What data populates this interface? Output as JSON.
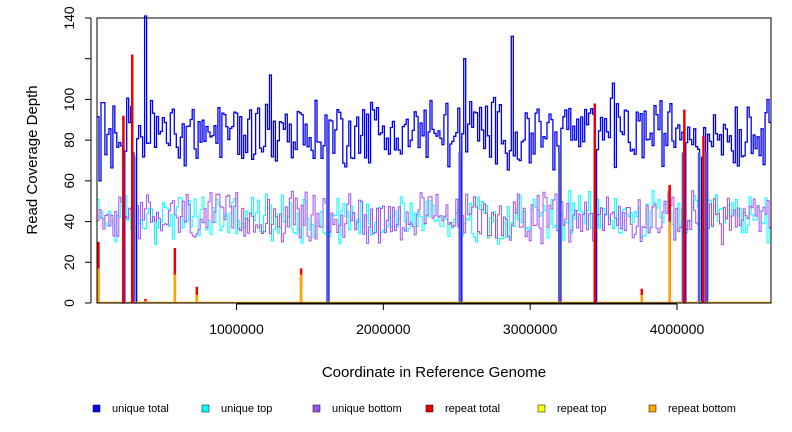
{
  "chart_data": {
    "type": "line",
    "title": "",
    "xlabel": "Coordinate in Reference Genome",
    "ylabel": "Read Coverage Depth",
    "xlim": [
      50000,
      4640000
    ],
    "ylim": [
      0,
      140
    ],
    "x_ticks": [
      1000000,
      2000000,
      3000000,
      4000000
    ],
    "x_tick_labels": [
      "1000000",
      "2000000",
      "3000000",
      "4000000"
    ],
    "y_ticks": [
      0,
      20,
      40,
      60,
      80,
      100,
      120,
      140
    ],
    "y_tick_labels": [
      "0",
      "20",
      "40",
      "60",
      "80",
      "100",
      "",
      "140"
    ],
    "grid": false,
    "legend_position": "bottom",
    "colors": {
      "unique_total": "#0000ee",
      "unique_top": "#00ffff",
      "unique_bottom": "#a050f0",
      "repeat_total": "#ee0000",
      "repeat_top": "#ffff00",
      "repeat_bottom": "#ffa500"
    },
    "series": [
      {
        "name": "unique total",
        "key": "unique_total",
        "baseline": 84,
        "noise": 14,
        "dips": [
          [
            60000,
            60
          ],
          [
            230000,
            0
          ],
          [
            300000,
            0
          ],
          [
            1620000,
            0
          ],
          [
            2520000,
            0
          ],
          [
            3200000,
            0
          ],
          [
            3440000,
            0
          ],
          [
            4040000,
            0
          ],
          [
            4150000,
            0
          ],
          [
            4200000,
            0
          ]
        ],
        "peaks": [
          [
            380000,
            141
          ],
          [
            2870000,
            131
          ],
          [
            2550000,
            120
          ],
          [
            1220000,
            112
          ],
          [
            3560000,
            108
          ]
        ]
      },
      {
        "name": "unique top",
        "key": "unique_top",
        "baseline": 42,
        "noise": 10,
        "dips": [
          [
            230000,
            0
          ],
          [
            300000,
            0
          ],
          [
            1620000,
            0
          ],
          [
            2520000,
            0
          ],
          [
            3200000,
            0
          ],
          [
            3440000,
            0
          ],
          [
            4040000,
            0
          ],
          [
            4150000,
            0
          ],
          [
            4200000,
            0
          ]
        ],
        "peaks": []
      },
      {
        "name": "unique bottom",
        "key": "unique_bottom",
        "baseline": 42,
        "noise": 10,
        "dips": [
          [
            230000,
            0
          ],
          [
            300000,
            0
          ],
          [
            1620000,
            0
          ],
          [
            2520000,
            0
          ],
          [
            3200000,
            0
          ],
          [
            3440000,
            0
          ],
          [
            4040000,
            0
          ],
          [
            4150000,
            0
          ],
          [
            4200000,
            0
          ]
        ],
        "peaks": []
      },
      {
        "name": "repeat total",
        "key": "repeat_total",
        "spikes": [
          [
            60000,
            30
          ],
          [
            230000,
            92
          ],
          [
            290000,
            122
          ],
          [
            380000,
            2
          ],
          [
            580000,
            27
          ],
          [
            730000,
            8
          ],
          [
            1440000,
            17
          ],
          [
            3440000,
            98
          ],
          [
            3760000,
            7
          ],
          [
            3950000,
            58
          ],
          [
            4050000,
            95
          ],
          [
            4180000,
            82
          ]
        ]
      },
      {
        "name": "repeat top",
        "key": "repeat_top",
        "spikes": [
          [
            60000,
            14
          ],
          [
            580000,
            12
          ],
          [
            1440000,
            8
          ]
        ]
      },
      {
        "name": "repeat bottom",
        "key": "repeat_bottom",
        "spikes": [
          [
            60000,
            17
          ],
          [
            380000,
            1
          ],
          [
            580000,
            14
          ],
          [
            730000,
            4
          ],
          [
            1440000,
            14
          ],
          [
            3760000,
            4
          ],
          [
            3950000,
            40
          ]
        ]
      }
    ]
  }
}
